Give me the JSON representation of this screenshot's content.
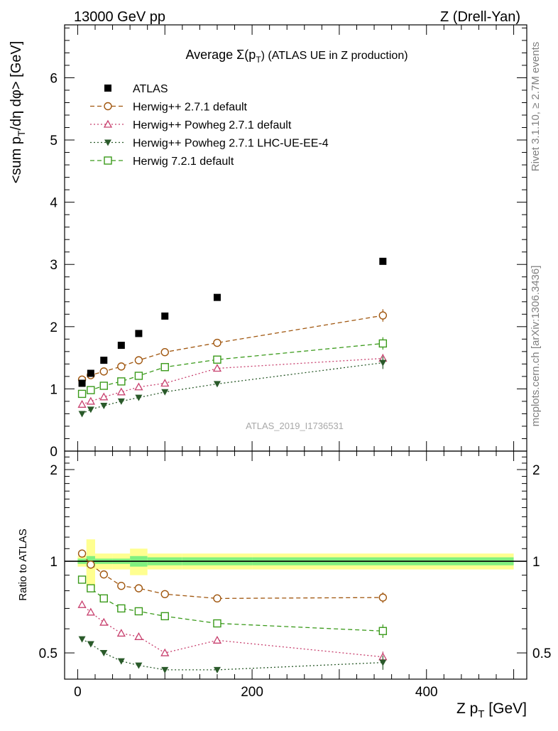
{
  "header": {
    "left": "13000 GeV pp",
    "right": "Z (Drell-Yan)"
  },
  "side_labels": {
    "rivet": "Rivet 3.1.10, ≥ 2.7M events",
    "mcplots": "mcplots.cern.ch [arXiv:1306.3436]"
  },
  "watermark": "ATLAS_2019_I1736531",
  "colors": {
    "atlas": "#000000",
    "herwig271": "#a0560e",
    "powheg": "#c8406e",
    "powheg_ue": "#2a5a2a",
    "herwig721": "#3a9a1a",
    "band_inner": "#80f080",
    "band_outer": "#ffff90"
  },
  "chart_data": [
    {
      "type": "scatter",
      "panel": "main",
      "title_prefix": "Average ",
      "title_sigma": "Σ(p",
      "title_sub": "T",
      "title_suffix": ") (ATLAS UE in Z production)",
      "ylabel_a": "<sum p",
      "ylabel_sub": "T",
      "ylabel_b": "/dη dφ> [GeV]",
      "xlim": [
        -15,
        515
      ],
      "ylim": [
        0,
        6.85
      ],
      "yticks": [
        0,
        1,
        2,
        3,
        4,
        5,
        6
      ],
      "ytick_labels": [
        "0",
        "1",
        "2",
        "3",
        "4",
        "5",
        "6"
      ],
      "legend_placement": "top-left",
      "x": [
        5,
        15,
        30,
        50,
        70,
        100,
        160,
        350
      ],
      "series": [
        {
          "key": "atlas",
          "name": "ATLAS",
          "marker": "square-filled",
          "line": "none",
          "values": [
            1.09,
            1.25,
            1.46,
            1.7,
            1.89,
            2.17,
            2.47,
            3.05
          ],
          "err": [
            0,
            0,
            0,
            0,
            0,
            0,
            0,
            0
          ]
        },
        {
          "key": "herwig271",
          "name": "Herwig++ 2.7.1 default",
          "marker": "circle-open",
          "line": "dashed",
          "values": [
            1.15,
            1.22,
            1.28,
            1.36,
            1.46,
            1.59,
            1.74,
            2.18
          ],
          "err": [
            0,
            0,
            0,
            0,
            0,
            0,
            0,
            0.1
          ]
        },
        {
          "key": "powheg",
          "name": "Herwig++ Powheg 2.7.1 default",
          "marker": "triangle-open",
          "line": "dotted",
          "values": [
            0.75,
            0.8,
            0.87,
            0.95,
            1.03,
            1.09,
            1.33,
            1.49
          ],
          "err": [
            0,
            0,
            0,
            0,
            0,
            0,
            0,
            0.07
          ]
        },
        {
          "key": "powheg_ue",
          "name": "Herwig++ Powheg 2.7.1 LHC-UE-EE-4",
          "marker": "triangle-down-filled",
          "line": "dotted",
          "values": [
            0.6,
            0.67,
            0.73,
            0.8,
            0.86,
            0.95,
            1.08,
            1.42
          ],
          "err": [
            0,
            0,
            0,
            0,
            0,
            0,
            0,
            0.1
          ]
        },
        {
          "key": "herwig721",
          "name": "Herwig 7.2.1 default",
          "marker": "square-open",
          "line": "dashed",
          "values": [
            0.92,
            0.98,
            1.05,
            1.12,
            1.21,
            1.35,
            1.47,
            1.73
          ],
          "err": [
            0,
            0,
            0,
            0,
            0,
            0,
            0,
            0.1
          ]
        }
      ]
    },
    {
      "type": "scatter",
      "panel": "ratio",
      "ylabel": "Ratio to ATLAS",
      "xlabel_a": "Z p",
      "xlabel_sub": "T",
      "xlabel_b": " [GeV]",
      "xlim": [
        -15,
        515
      ],
      "ylim": [
        0.41,
        2.3
      ],
      "yscale": "log",
      "yticks": [
        0.5,
        1,
        2
      ],
      "ytick_labels": [
        "0.5",
        "1",
        "2"
      ],
      "xticks": [
        0,
        200,
        400
      ],
      "xtick_labels": [
        "0",
        "200",
        "400"
      ],
      "reference_line": 1,
      "bands": [
        {
          "x0": 0,
          "x1": 10,
          "inner": 0.02,
          "outer": 0.04
        },
        {
          "x0": 10,
          "x1": 20,
          "inner": 0.04,
          "outer": 0.18
        },
        {
          "x0": 20,
          "x1": 40,
          "inner": 0.02,
          "outer": 0.06
        },
        {
          "x0": 40,
          "x1": 60,
          "inner": 0.02,
          "outer": 0.06
        },
        {
          "x0": 60,
          "x1": 80,
          "inner": 0.04,
          "outer": 0.1
        },
        {
          "x0": 80,
          "x1": 120,
          "inner": 0.03,
          "outer": 0.06
        },
        {
          "x0": 120,
          "x1": 200,
          "inner": 0.03,
          "outer": 0.06
        },
        {
          "x0": 200,
          "x1": 500,
          "inner": 0.03,
          "outer": 0.06
        }
      ],
      "x": [
        5,
        15,
        30,
        50,
        70,
        100,
        160,
        350
      ],
      "series": [
        {
          "key": "herwig271",
          "values": [
            1.06,
            0.975,
            0.905,
            0.83,
            0.815,
            0.78,
            0.755,
            0.76
          ],
          "err": [
            0,
            0,
            0,
            0,
            0,
            0,
            0,
            0.03
          ]
        },
        {
          "key": "herwig721",
          "values": [
            0.87,
            0.815,
            0.755,
            0.7,
            0.685,
            0.66,
            0.625,
            0.59
          ],
          "err": [
            0,
            0,
            0,
            0,
            0,
            0,
            0,
            0.03
          ]
        },
        {
          "key": "powheg",
          "values": [
            0.72,
            0.68,
            0.63,
            0.58,
            0.565,
            0.5,
            0.55,
            0.485
          ],
          "err": [
            0,
            0,
            0,
            0,
            0,
            0,
            0,
            0.02
          ]
        },
        {
          "key": "powheg_ue",
          "values": [
            0.555,
            0.535,
            0.5,
            0.47,
            0.455,
            0.44,
            0.44,
            0.465
          ],
          "err": [
            0,
            0,
            0,
            0,
            0,
            0,
            0,
            0.025
          ]
        }
      ]
    }
  ]
}
